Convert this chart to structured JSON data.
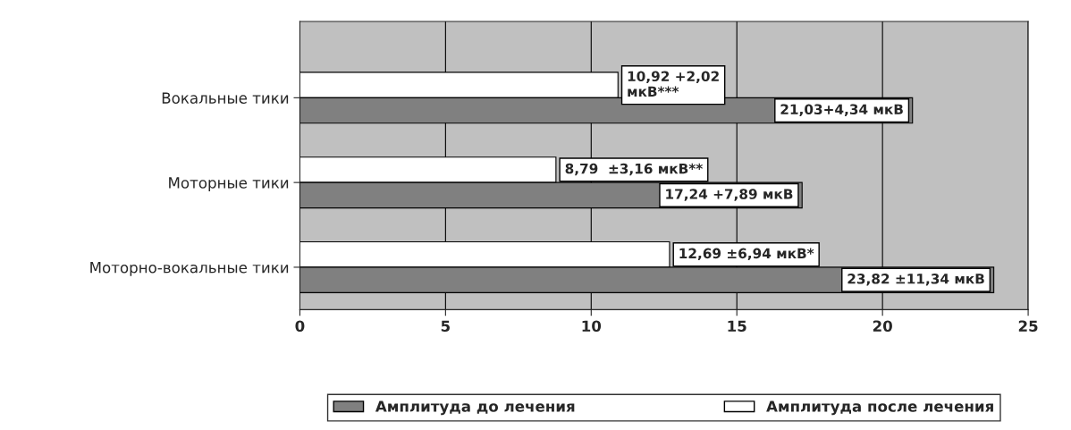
{
  "chart_data": {
    "type": "bar",
    "orientation": "horizontal",
    "categories": [
      "Вокальные тики",
      "Моторные тики",
      "Моторно-вокальные тики"
    ],
    "series": [
      {
        "name": "Амплитуда после лечения",
        "color": "#ffffff",
        "values": [
          10.92,
          8.79,
          12.69
        ],
        "value_labels": [
          "10,92 +2,02\nмкВ***",
          "8,79  ±3,16 мкВ**",
          "12,69 ±6,94 мкВ*"
        ]
      },
      {
        "name": "Амплитуда до лечения",
        "color": "#808080",
        "values": [
          21.03,
          17.24,
          23.82
        ],
        "value_labels": [
          "21,03+4,34 мкВ",
          "17,24 +7,89 мкВ",
          "23,82 ±11,34 мкВ"
        ]
      }
    ],
    "xlim": [
      0,
      25
    ],
    "xticks": [
      0,
      5,
      10,
      15,
      20,
      25
    ],
    "grid": "x",
    "legend": "bottom"
  }
}
